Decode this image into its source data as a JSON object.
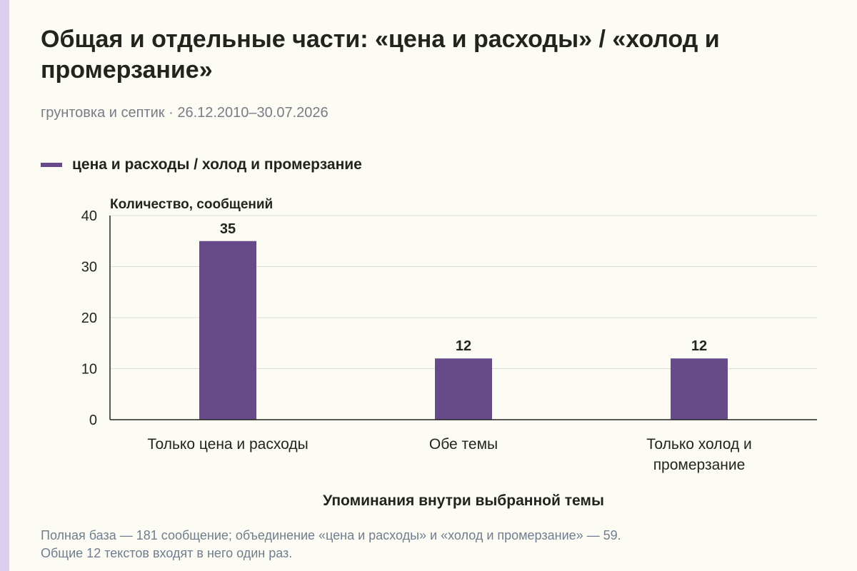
{
  "header": {
    "title": "Общая и отдельные части: «цена и расходы» / «холод и промерзание»",
    "subtitle": "грунтовка и септик · 26.12.2010–30.07.2026"
  },
  "legend": {
    "label": "цена и расходы / холод и промерзание"
  },
  "chart_data": {
    "type": "bar",
    "ylabel": "Количество, сообщений",
    "xlabel": "Упоминания внутри выбранной темы",
    "ylim": [
      0,
      40
    ],
    "yticks": [
      0,
      10,
      20,
      30,
      40
    ],
    "grid": true,
    "categories": [
      [
        "Только цена и расходы"
      ],
      [
        "Обе темы"
      ],
      [
        "Только холод и",
        "промерзание"
      ]
    ],
    "series": [
      {
        "name": "цена и расходы / холод и промерзание",
        "values": [
          35,
          12,
          12
        ]
      }
    ],
    "data_labels": [
      "35",
      "12",
      "12"
    ]
  },
  "footnote": {
    "lines": [
      "Полная база — 181 сообщение; объединение «цена и расходы» и «холод и промерзание» — 59.",
      "Общие 12 текстов входят в него один раз."
    ]
  },
  "colors": {
    "bar": "#674a8a",
    "background": "#fdfcf4",
    "stripe": "#dccfee",
    "grid": "#dcdcdc",
    "axis": "#23241f",
    "text": "#23241f",
    "muted": "#7c7a86",
    "footnote": "#6f7d8e"
  }
}
